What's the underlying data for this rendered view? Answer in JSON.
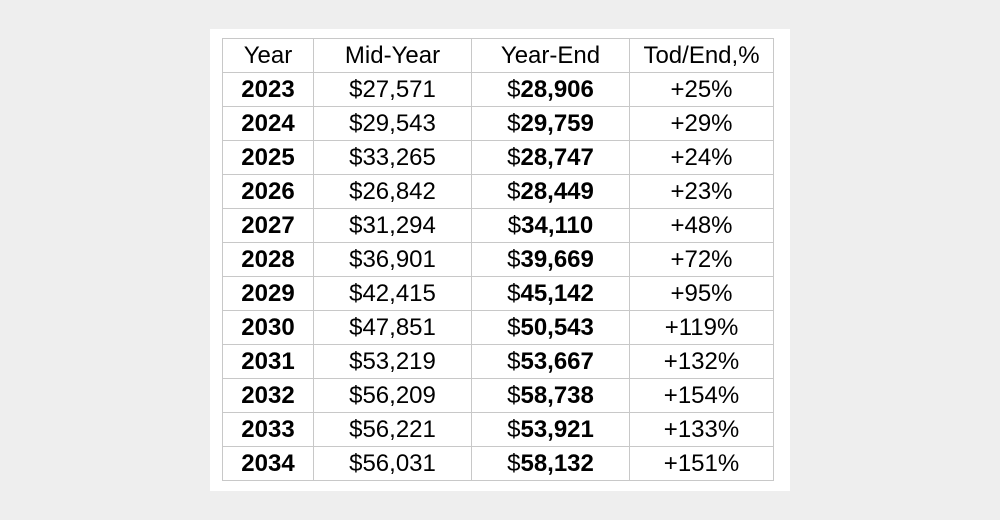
{
  "chart_data": {
    "type": "table",
    "columns": [
      "Year",
      "Mid-Year",
      "Year-End",
      "Tod/End,%"
    ],
    "rows": [
      {
        "year": "2023",
        "mid": "$27,571",
        "end": "28,906",
        "pct": "+25%"
      },
      {
        "year": "2024",
        "mid": "$29,543",
        "end": "29,759",
        "pct": "+29%"
      },
      {
        "year": "2025",
        "mid": "$33,265",
        "end": "28,747",
        "pct": "+24%"
      },
      {
        "year": "2026",
        "mid": "$26,842",
        "end": "28,449",
        "pct": "+23%"
      },
      {
        "year": "2027",
        "mid": "$31,294",
        "end": "34,110",
        "pct": "+48%"
      },
      {
        "year": "2028",
        "mid": "$36,901",
        "end": "39,669",
        "pct": "+72%"
      },
      {
        "year": "2029",
        "mid": "$42,415",
        "end": "45,142",
        "pct": "+95%"
      },
      {
        "year": "2030",
        "mid": "$47,851",
        "end": "50,543",
        "pct": "+119%"
      },
      {
        "year": "2031",
        "mid": "$53,219",
        "end": "53,667",
        "pct": "+132%"
      },
      {
        "year": "2032",
        "mid": "$56,209",
        "end": "58,738",
        "pct": "+154%"
      },
      {
        "year": "2033",
        "mid": "$56,221",
        "end": "53,921",
        "pct": "+133%"
      },
      {
        "year": "2034",
        "mid": "$56,031",
        "end": "58,132",
        "pct": "+151%"
      }
    ],
    "currency_symbol": "$"
  },
  "colors": {
    "page_background": "#eeeeee",
    "card_background": "#ffffff",
    "grid_line": "#c8c8c8",
    "text": "#000000"
  }
}
